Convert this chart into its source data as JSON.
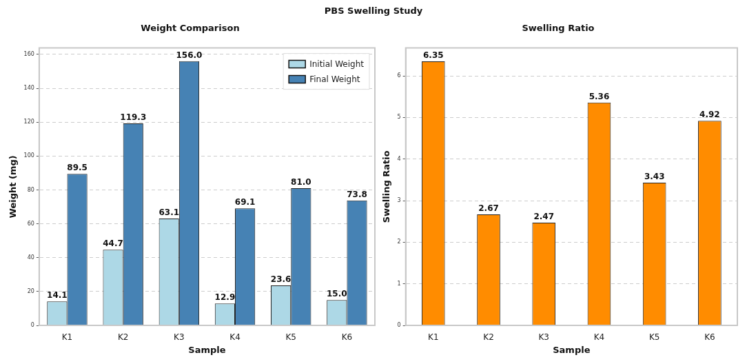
{
  "chart_data": [
    {
      "type": "bar",
      "title": "Weight Comparison",
      "xlabel": "Sample",
      "ylabel": "Weight (mg)",
      "annotations": [
        "PBS Swelling Study"
      ],
      "categories": [
        "K1",
        "K2",
        "K3",
        "K4",
        "K5",
        "K6"
      ],
      "series": [
        {
          "name": "Initial Weight",
          "color": "#add8e6",
          "values": [
            14.1,
            44.7,
            63.1,
            12.9,
            23.6,
            15.0
          ],
          "value_labels": [
            "14.1",
            "44.7",
            "63.1",
            "12.9",
            "23.6",
            "15.0"
          ]
        },
        {
          "name": "Final Weight",
          "color": "#4682b4",
          "values": [
            89.5,
            119.3,
            156.0,
            69.1,
            81.0,
            73.8
          ],
          "value_labels": [
            "89.5",
            "119.3",
            "156.0",
            "69.1",
            "81.0",
            "73.8"
          ]
        }
      ],
      "ylim": [
        0,
        163.8
      ],
      "yticks": [
        0,
        20,
        40,
        60,
        80,
        100,
        120,
        140,
        160
      ],
      "grid": "y",
      "legend": "top right"
    },
    {
      "type": "bar",
      "title": "Swelling Ratio",
      "xlabel": "Sample",
      "ylabel": "Swelling Ratio",
      "categories": [
        "K1",
        "K2",
        "K3",
        "K4",
        "K5",
        "K6"
      ],
      "values": [
        6.35,
        2.67,
        2.47,
        5.36,
        3.43,
        4.92
      ],
      "color": "#ff8c00",
      "ylim": [
        0,
        6.67
      ],
      "yticks": [
        0,
        1,
        2,
        3,
        4,
        5,
        6
      ],
      "grid": "y",
      "data_labels": true
    }
  ]
}
